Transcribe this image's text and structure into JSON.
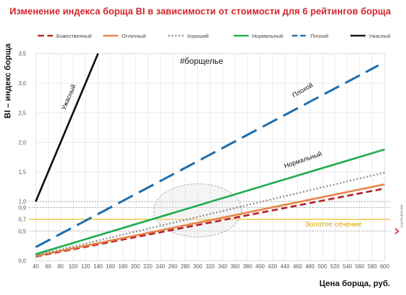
{
  "chart_data": {
    "type": "line",
    "title": "Изменение индекса борща BI в зависимости от стоимости для 6 рейтингов борща",
    "xlabel": "Цена борща, руб.",
    "ylabel": "BI – индекс борща",
    "xlim": [
      40,
      600
    ],
    "ylim": [
      0,
      3.5
    ],
    "x_ticks": [
      40,
      60,
      80,
      100,
      120,
      140,
      160,
      180,
      200,
      220,
      240,
      260,
      280,
      300,
      320,
      340,
      360,
      380,
      400,
      420,
      440,
      460,
      480,
      500,
      520,
      540,
      560,
      580,
      600
    ],
    "y_ticks": [
      {
        "value": 0.0,
        "label": "0,0"
      },
      {
        "value": 0.5,
        "label": "0,5"
      },
      {
        "value": 0.7,
        "label": "0,7"
      },
      {
        "value": 0.9,
        "label": "0,9"
      },
      {
        "value": 1.0,
        "label": "1,0"
      },
      {
        "value": 1.5,
        "label": "1,5"
      },
      {
        "value": 2.0,
        "label": "2,0"
      },
      {
        "value": 2.5,
        "label": "2,5"
      },
      {
        "value": 3.0,
        "label": "3,0"
      },
      {
        "value": 3.5,
        "label": "3,5"
      }
    ],
    "grid": true,
    "legend_position": "top",
    "series": [
      {
        "name": "Божественный",
        "color": "#b8222a",
        "style": "dashed",
        "x": [
          40,
          600
        ],
        "y": [
          0.07,
          1.22
        ]
      },
      {
        "name": "Отличный",
        "color": "#e8864a",
        "style": "solid",
        "x": [
          40,
          600
        ],
        "y": [
          0.08,
          1.29
        ]
      },
      {
        "name": "Хороший",
        "color": "#888888",
        "style": "dotted",
        "x": [
          40,
          600
        ],
        "y": [
          0.09,
          1.49
        ]
      },
      {
        "name": "Нормальный",
        "color": "#1fae4f",
        "style": "solid",
        "x": [
          40,
          600
        ],
        "y": [
          0.11,
          1.88
        ]
      },
      {
        "name": "Плохой",
        "color": "#1f6fae",
        "style": "longdash",
        "x": [
          40,
          590
        ],
        "y": [
          0.23,
          3.3
        ]
      },
      {
        "name": "Ужасный",
        "color": "#111111",
        "style": "solid",
        "x": [
          40,
          140
        ],
        "y": [
          1.0,
          3.5
        ]
      }
    ],
    "reference_lines": [
      {
        "value": 0.7,
        "label": "Золотое сечение",
        "color": "#f0c020"
      },
      {
        "value": 0.9,
        "color": "#999999"
      },
      {
        "value": 1.0,
        "color": "#999999"
      },
      {
        "value": 0.5,
        "color": "#999999"
      }
    ],
    "line_labels": [
      {
        "text": "Ужасный",
        "x": 96,
        "y": 2.75,
        "angle": -67
      },
      {
        "text": "Плохой",
        "x": 470,
        "y": 2.85,
        "angle": -30
      },
      {
        "text": "Нормальный",
        "x": 470,
        "y": 1.67,
        "angle": -19
      }
    ],
    "annotations": [
      {
        "text": "#борщелье",
        "x": 300,
        "y": 3.33
      },
      {
        "text": "Золотое сечение",
        "x": 487,
        "y": 0.62
      }
    ],
    "highlight_ellipse": {
      "cx": 300,
      "cy": 0.85,
      "rx": 64,
      "ry": 0.45
    },
    "signature": "Сергей Дубовик"
  }
}
